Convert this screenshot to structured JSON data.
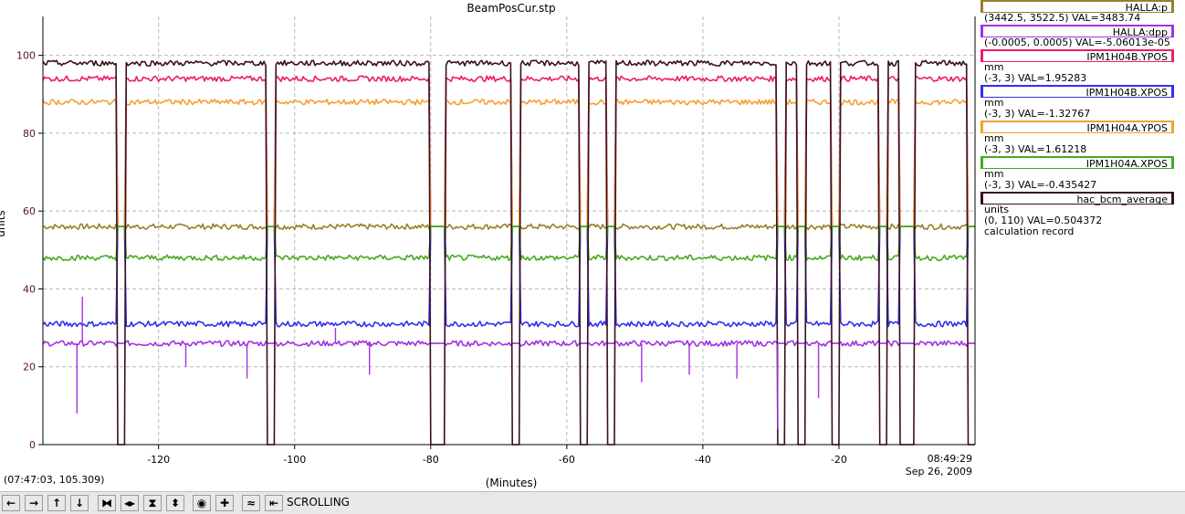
{
  "chart_data": {
    "type": "line",
    "title": "BeamPosCur.stp",
    "ylabel": "units",
    "xlabel": "(Minutes)",
    "xlim": [
      -137,
      0
    ],
    "ylim": [
      0,
      110
    ],
    "x_ticks": [
      -120,
      -100,
      -80,
      -60,
      -40,
      -20
    ],
    "y_ticks": [
      0,
      20,
      40,
      60,
      80,
      100
    ],
    "grid": true,
    "legend_position": "right",
    "beam_off_intervals": [
      [
        -126,
        -125
      ],
      [
        -104,
        -103
      ],
      [
        -80,
        -78
      ],
      [
        -68,
        -67
      ],
      [
        -58,
        -57
      ],
      [
        -54,
        -53
      ],
      [
        -29,
        -28
      ],
      [
        -26,
        -25
      ],
      [
        -21,
        -20
      ],
      [
        -14,
        -13
      ],
      [
        -11,
        -10
      ],
      [
        -10,
        -9
      ],
      [
        -1,
        0
      ]
    ],
    "series": [
      {
        "name": "HALLA:p",
        "color": "#9a7f2a",
        "values_on": 56,
        "values_off": 56
      },
      {
        "name": "HALLA:dpp",
        "color": "#a033e0",
        "values_on": 26,
        "values_off": 26
      },
      {
        "name": "IPM1H04B.YPOS",
        "color": "#ee1a70",
        "values_on": 94,
        "values_off": 56
      },
      {
        "name": "IPM1H04B.XPOS",
        "color": "#3030f0",
        "values_on": 31,
        "values_off": 56
      },
      {
        "name": "IPM1H04A.YPOS",
        "color": "#f4a030",
        "values_on": 88,
        "values_off": 56
      },
      {
        "name": "IPM1H04A.XPOS",
        "color": "#44aa22",
        "values_on": 48,
        "values_off": 56
      },
      {
        "name": "hac_bcm_average",
        "color": "#3a0f1f",
        "values_on": 98,
        "values_off": 0
      }
    ]
  },
  "title": "BeamPosCur.stp",
  "ylabel": "units",
  "xlabel": "(Minutes)",
  "cursor_readout": "(07:47:03, 105.309)",
  "time_end": {
    "time": "08:49:29",
    "date": "Sep 26, 2009"
  },
  "legend": [
    {
      "name": "HALLA:p",
      "color": "#9a7f2a",
      "lines": [
        "(3442.5, 3522.5) VAL=3483.74"
      ]
    },
    {
      "name": "HALLA:dpp",
      "color": "#a033e0",
      "lines": [
        "(-0.0005, 0.0005) VAL=-5.06013e-05"
      ]
    },
    {
      "name": "IPM1H04B.YPOS",
      "color": "#ee1a70",
      "lines": [
        "mm",
        "(-3, 3) VAL=1.95283"
      ]
    },
    {
      "name": "IPM1H04B.XPOS",
      "color": "#3030f0",
      "lines": [
        "mm",
        "(-3, 3) VAL=-1.32767"
      ]
    },
    {
      "name": "IPM1H04A.YPOS",
      "color": "#f4a030",
      "lines": [
        "mm",
        "(-3, 3) VAL=1.61218"
      ]
    },
    {
      "name": "IPM1H04A.XPOS",
      "color": "#44aa22",
      "lines": [
        "mm",
        "(-3, 3) VAL=-0.435427"
      ]
    },
    {
      "name": "hac_bcm_average",
      "color": "#3a0f1f",
      "lines": [
        "units",
        "(0, 110) VAL=0.504372",
        "calculation record"
      ]
    }
  ],
  "toolbar": {
    "status": "SCROLLING",
    "buttons": [
      {
        "name": "scroll-left-button",
        "icon": "arrow-left-icon",
        "glyph": "←"
      },
      {
        "name": "scroll-right-button",
        "icon": "arrow-right-icon",
        "glyph": "→"
      },
      {
        "name": "scroll-up-button",
        "icon": "arrow-up-icon",
        "glyph": "↑"
      },
      {
        "name": "scroll-down-button",
        "icon": "arrow-down-icon",
        "glyph": "↓"
      },
      {
        "name": "zoom-x-in-button",
        "icon": "zoom-x-in-icon",
        "glyph": "⧓"
      },
      {
        "name": "zoom-x-out-button",
        "icon": "zoom-x-out-icon",
        "glyph": "◂▸"
      },
      {
        "name": "zoom-y-in-button",
        "icon": "zoom-y-in-icon",
        "glyph": "⧗"
      },
      {
        "name": "zoom-y-out-button",
        "icon": "zoom-y-out-icon",
        "glyph": "⬍"
      },
      {
        "name": "reset-zoom-button",
        "icon": "target-icon",
        "glyph": "◉"
      },
      {
        "name": "add-button",
        "icon": "plus-icon",
        "glyph": "✚"
      },
      {
        "name": "autoscale-button",
        "icon": "waveform-icon",
        "glyph": "≈"
      },
      {
        "name": "scroll-mode-button",
        "icon": "scroll-mode-icon",
        "glyph": "⇤"
      }
    ]
  }
}
